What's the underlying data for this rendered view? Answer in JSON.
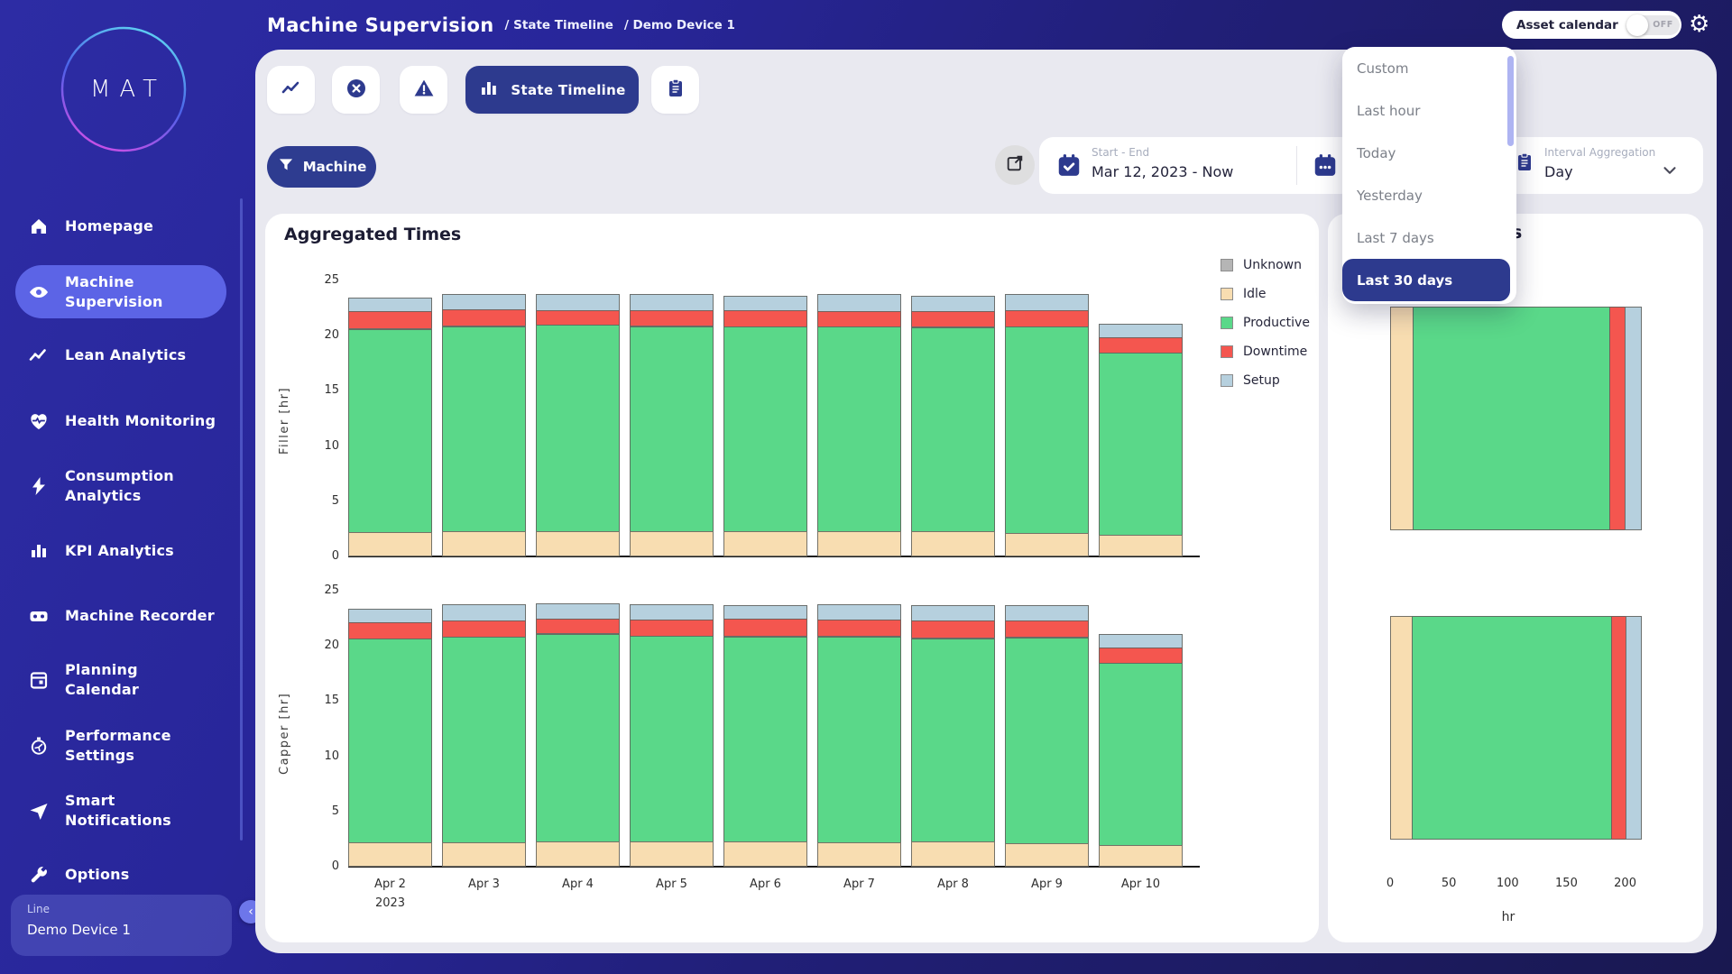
{
  "topbar": {
    "title": "Machine Supervision",
    "breadcrumbs": [
      "/ State Timeline",
      "/ Demo Device 1"
    ],
    "asset_calendar": {
      "label": "Asset calendar",
      "state": "OFF"
    },
    "gear_icon": "gear-icon"
  },
  "sidebar": {
    "logo_text": "MAT",
    "logo_gradient": [
      "#5fd2f2",
      "#4b62e8",
      "#cc4fe6"
    ],
    "items": [
      {
        "icon": "home",
        "label": "Homepage",
        "active": false
      },
      {
        "icon": "eye",
        "label": "Machine\nSupervision",
        "active": true
      },
      {
        "icon": "trend",
        "label": "Lean Analytics",
        "active": false
      },
      {
        "icon": "heart",
        "label": "Health Monitoring",
        "active": false
      },
      {
        "icon": "bolt",
        "label": "Consumption\nAnalytics",
        "active": false
      },
      {
        "icon": "kpi",
        "label": "KPI Analytics",
        "active": false
      },
      {
        "icon": "recorder",
        "label": "Machine Recorder",
        "active": false
      },
      {
        "icon": "calendar",
        "label": "Planning\nCalendar",
        "active": false
      },
      {
        "icon": "gauge",
        "label": "Performance\nSettings",
        "active": false
      },
      {
        "icon": "plane",
        "label": "Smart\nNotifications",
        "active": false
      },
      {
        "icon": "wrench",
        "label": "Options",
        "active": false
      }
    ],
    "footer": {
      "label": "Line",
      "value": "Demo Device 1"
    },
    "accent_active": "#5c64e6"
  },
  "tabs": {
    "icon_buttons": [
      "trendline",
      "circle-x",
      "warning"
    ],
    "active": {
      "icon": "bars",
      "label": "State Timeline"
    },
    "trailing_button": "clipboard"
  },
  "filters": {
    "machine_label": "Machine",
    "date_range": {
      "label": "Start - End",
      "value": "Mar 12, 2023 - Now"
    },
    "interval": {
      "label": "Interval Aggregation",
      "value": "Day"
    }
  },
  "dropdown": {
    "items": [
      "Custom",
      "Last hour",
      "Today",
      "Yesterday",
      "Last 7 days",
      "Last 30 days"
    ],
    "selected": "Last 30 days",
    "highlight_color": "#2d3a8e"
  },
  "left_panel": {
    "title": "Aggregated Times"
  },
  "right_panel": {
    "title_fragment": "s",
    "xlabel": "hr"
  },
  "state_colors": {
    "Unknown": "#b5b5b5",
    "Idle": "#f8ddb1",
    "Productive": "#5ad889",
    "Downtime": "#f4564f",
    "Setup": "#b6d0de"
  },
  "legend": [
    "Unknown",
    "Idle",
    "Productive",
    "Downtime",
    "Setup"
  ],
  "chart_data": [
    {
      "type": "bar",
      "stacked": true,
      "orientation": "vertical",
      "title": "Aggregated Times",
      "ylabel": "Filler [hr]",
      "ylim": [
        0,
        25
      ],
      "yticks": [
        0,
        5,
        10,
        15,
        20,
        25
      ],
      "grid": false,
      "legend_position": "right",
      "categories": [
        "Apr 2",
        "Apr 3",
        "Apr 4",
        "Apr 5",
        "Apr 6",
        "Apr 7",
        "Apr 8",
        "Apr 9",
        "Apr 10"
      ],
      "categories_sub": [
        "2023",
        "",
        "",
        "",
        "",
        "",
        "",
        "",
        ""
      ],
      "series": [
        {
          "name": "Idle",
          "values": [
            2.2,
            2.25,
            2.3,
            2.3,
            2.25,
            2.3,
            2.3,
            2.1,
            1.95
          ]
        },
        {
          "name": "Productive",
          "values": [
            18.5,
            18.7,
            18.8,
            18.6,
            18.65,
            18.6,
            18.5,
            18.85,
            16.6
          ]
        },
        {
          "name": "Unknown",
          "values": [
            0.1,
            0.08,
            0,
            0.08,
            0,
            0,
            0.1,
            0,
            0
          ]
        },
        {
          "name": "Downtime",
          "values": [
            1.6,
            1.5,
            1.4,
            1.5,
            1.6,
            1.5,
            1.5,
            1.5,
            1.5
          ]
        },
        {
          "name": "Setup",
          "values": [
            1.3,
            1.5,
            1.5,
            1.5,
            1.4,
            1.6,
            1.5,
            1.55,
            1.25
          ]
        }
      ]
    },
    {
      "type": "bar",
      "stacked": true,
      "orientation": "vertical",
      "title": "Aggregated Times",
      "ylabel": "Capper [hr]",
      "ylim": [
        0,
        25
      ],
      "yticks": [
        0,
        5,
        10,
        15,
        20,
        25
      ],
      "grid": false,
      "categories": [
        "Apr 2",
        "Apr 3",
        "Apr 4",
        "Apr 5",
        "Apr 6",
        "Apr 7",
        "Apr 8",
        "Apr 9",
        "Apr 10"
      ],
      "categories_sub": [
        "2023",
        "",
        "",
        "",
        "",
        "",
        "",
        "",
        ""
      ],
      "series": [
        {
          "name": "Idle",
          "values": [
            2.2,
            2.2,
            2.3,
            2.3,
            2.3,
            2.2,
            2.3,
            2.15,
            2.0
          ]
        },
        {
          "name": "Productive",
          "values": [
            18.55,
            18.75,
            18.85,
            18.7,
            18.6,
            18.75,
            18.45,
            18.7,
            16.55
          ]
        },
        {
          "name": "Unknown",
          "values": [
            0,
            0,
            0.05,
            0,
            0.08,
            0.06,
            0.1,
            0.08,
            0
          ]
        },
        {
          "name": "Downtime",
          "values": [
            1.55,
            1.55,
            1.4,
            1.55,
            1.65,
            1.5,
            1.6,
            1.55,
            1.5
          ]
        },
        {
          "name": "Setup",
          "values": [
            1.35,
            1.5,
            1.45,
            1.45,
            1.35,
            1.45,
            1.5,
            1.45,
            1.25
          ]
        }
      ]
    },
    {
      "type": "bar",
      "stacked": true,
      "orientation": "horizontal",
      "xlabel": "hr",
      "xlim": [
        0,
        216
      ],
      "xticks": [
        0,
        50,
        100,
        150,
        200
      ],
      "grid": false,
      "categories": [
        "",
        ""
      ],
      "series": [
        {
          "name": "Idle",
          "values": [
            20,
            19
          ]
        },
        {
          "name": "Productive",
          "values": [
            168,
            170
          ]
        },
        {
          "name": "Downtime",
          "values": [
            13.5,
            13
          ]
        },
        {
          "name": "Setup",
          "values": [
            14.5,
            14
          ]
        }
      ]
    }
  ]
}
